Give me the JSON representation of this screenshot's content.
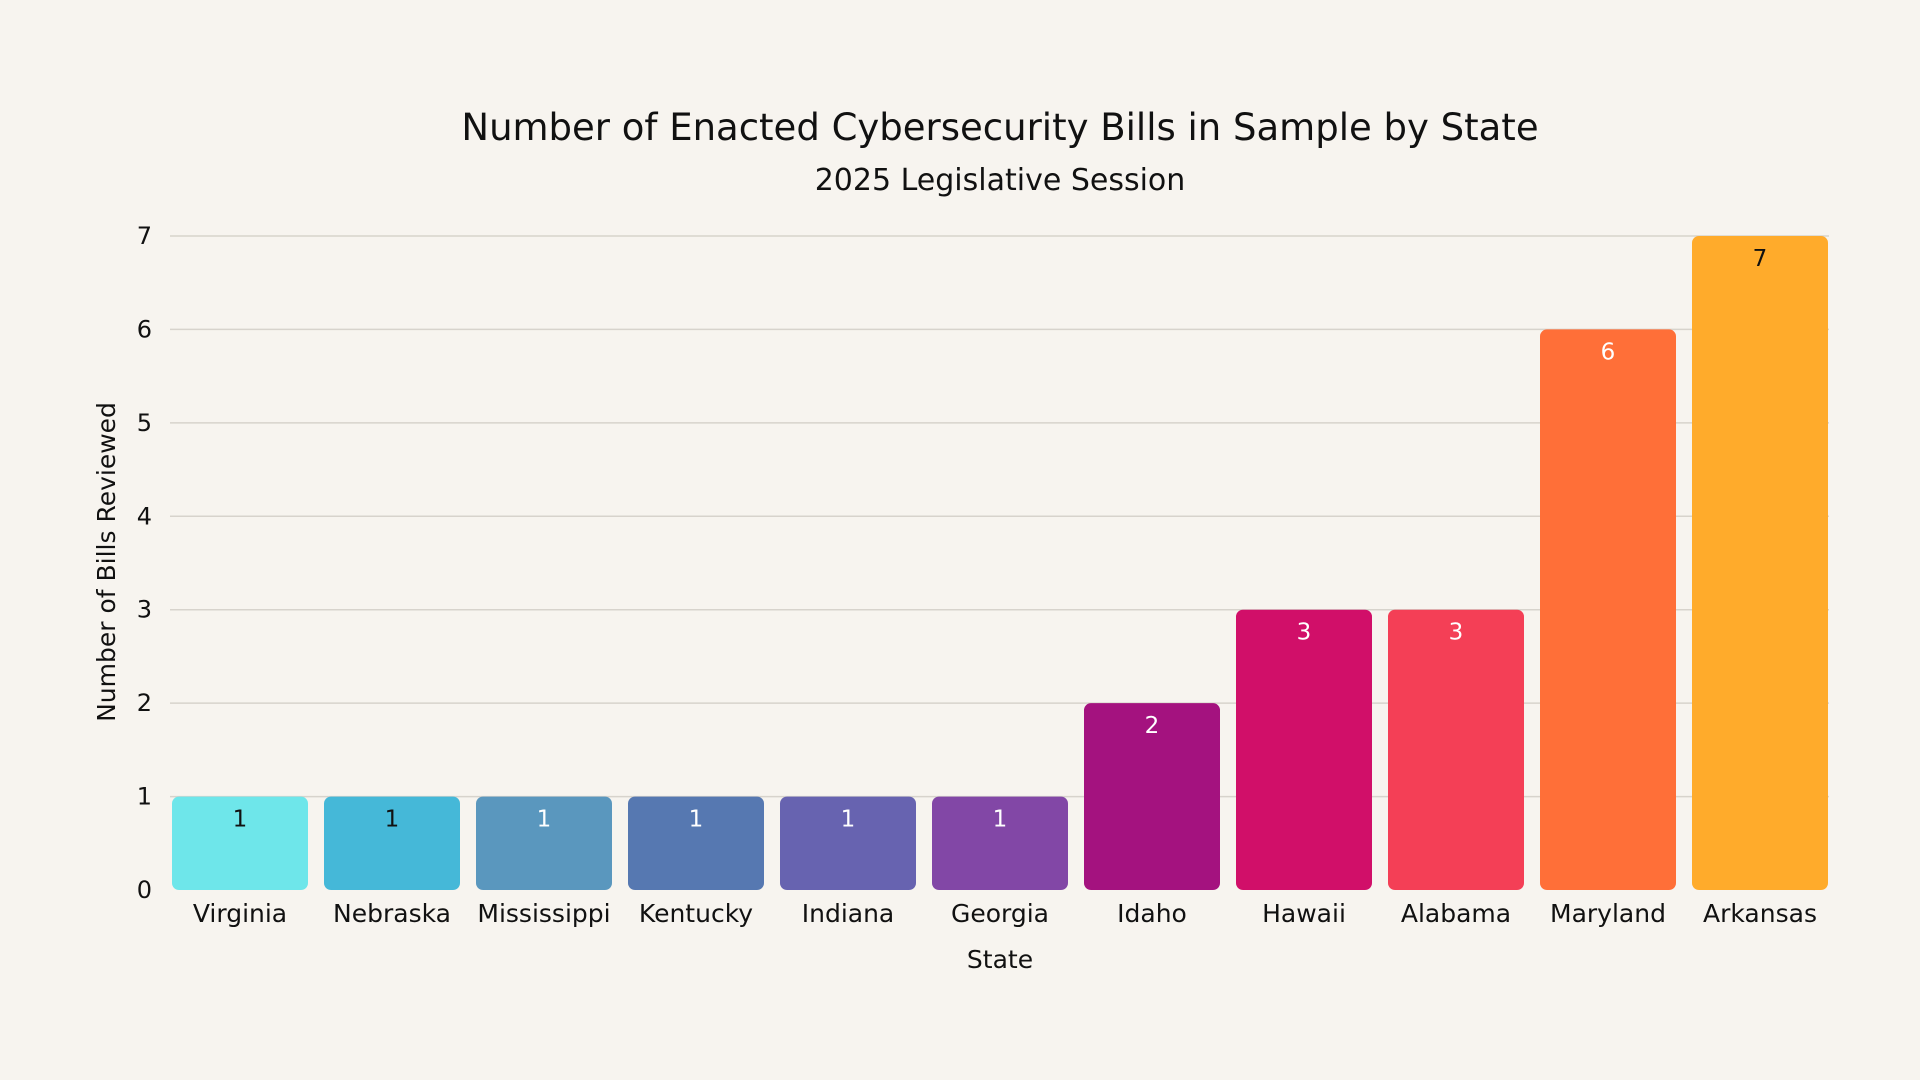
{
  "chart_data": {
    "type": "bar",
    "title": "Number of Enacted Cybersecurity Bills in Sample by State",
    "subtitle": "2025 Legislative Session",
    "xlabel": "State",
    "ylabel": "Number of Bills Reviewed",
    "ylim": [
      0,
      7
    ],
    "yticks": [
      "0",
      "1",
      "2",
      "3",
      "4",
      "5",
      "6",
      "7"
    ],
    "grid": true,
    "categories": [
      "Virginia",
      "Nebraska",
      "Mississippi",
      "Kentucky",
      "Indiana",
      "Georgia",
      "Idaho",
      "Hawaii",
      "Alabama",
      "Maryland",
      "Arkansas"
    ],
    "values": [
      1,
      1,
      1,
      1,
      1,
      1,
      2,
      3,
      3,
      6,
      7
    ],
    "data_labels": [
      "1",
      "1",
      "1",
      "1",
      "1",
      "1",
      "2",
      "3",
      "3",
      "6",
      "7"
    ],
    "colors": [
      "#6ee6ea",
      "#45b8d8",
      "#5a97be",
      "#5678b1",
      "#6763b0",
      "#8247a6",
      "#a4127f",
      "#d10f69",
      "#f43f56",
      "#ff6f38",
      "#ffab2b"
    ],
    "label_colors": [
      "#111111",
      "#111111",
      "#ffffff",
      "#ffffff",
      "#ffffff",
      "#ffffff",
      "#ffffff",
      "#ffffff",
      "#ffffff",
      "#ffffff",
      "#111111"
    ],
    "background": "#f7f4ef"
  }
}
